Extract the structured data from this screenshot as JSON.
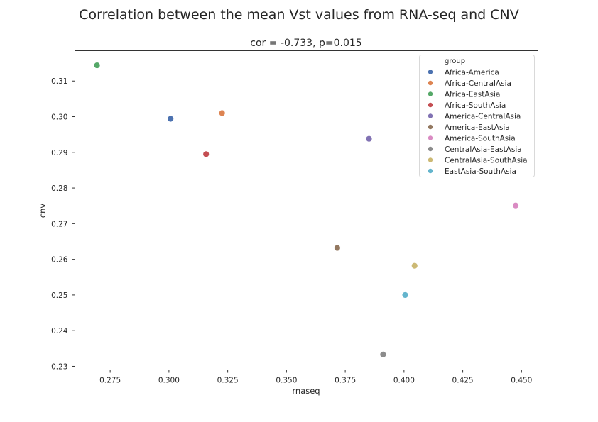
{
  "chart_data": {
    "type": "scatter",
    "title": "Correlation between the mean Vst values from RNA-seq and CNV",
    "subtitle": "cor = -0.733, p=0.015",
    "xlabel": "rnaseq",
    "ylabel": "cnv",
    "xlim": [
      0.26,
      0.457
    ],
    "ylim": [
      0.229,
      0.3185
    ],
    "xticks": [
      0.275,
      0.3,
      0.325,
      0.35,
      0.375,
      0.4,
      0.425,
      0.45
    ],
    "xtick_labels": [
      "0.275",
      "0.300",
      "0.325",
      "0.350",
      "0.375",
      "0.400",
      "0.425",
      "0.450"
    ],
    "yticks": [
      0.23,
      0.24,
      0.25,
      0.26,
      0.27,
      0.28,
      0.29,
      0.3,
      0.31
    ],
    "ytick_labels": [
      "0.23",
      "0.24",
      "0.25",
      "0.26",
      "0.27",
      "0.28",
      "0.29",
      "0.30",
      "0.31"
    ],
    "grid": false,
    "legend": {
      "title": "group",
      "placement": "upper-right"
    },
    "points": [
      {
        "group": "Africa-America",
        "x": 0.3007,
        "y": 0.2994,
        "color": "#4c72b0"
      },
      {
        "group": "Africa-CentralAsia",
        "x": 0.3226,
        "y": 0.301,
        "color": "#dd8452"
      },
      {
        "group": "Africa-EastAsia",
        "x": 0.2694,
        "y": 0.3144,
        "color": "#55a868"
      },
      {
        "group": "Africa-SouthAsia",
        "x": 0.3158,
        "y": 0.2895,
        "color": "#c44e52"
      },
      {
        "group": "America-CentralAsia",
        "x": 0.3851,
        "y": 0.2938,
        "color": "#8172b3"
      },
      {
        "group": "America-EastAsia",
        "x": 0.3716,
        "y": 0.2632,
        "color": "#937860"
      },
      {
        "group": "America-SouthAsia",
        "x": 0.4475,
        "y": 0.2751,
        "color": "#da8bc3"
      },
      {
        "group": "CentralAsia-EastAsia",
        "x": 0.3911,
        "y": 0.2333,
        "color": "#8c8c8c"
      },
      {
        "group": "CentralAsia-SouthAsia",
        "x": 0.4045,
        "y": 0.2582,
        "color": "#ccb974"
      },
      {
        "group": "EastAsia-SouthAsia",
        "x": 0.4005,
        "y": 0.25,
        "color": "#64b5cd"
      }
    ]
  }
}
